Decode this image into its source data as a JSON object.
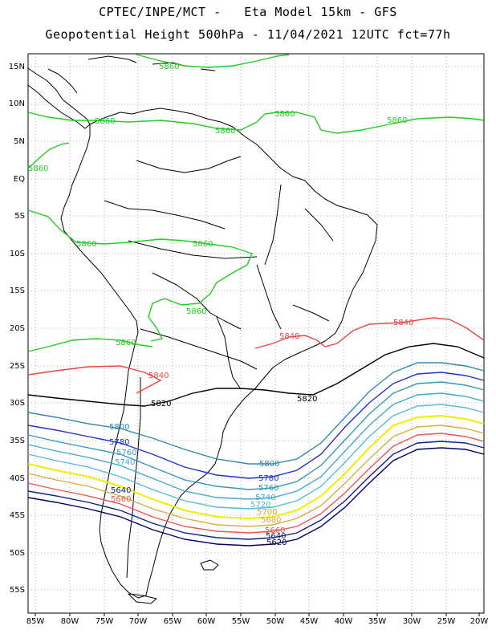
{
  "title_line1": "CPTEC/INPE/MCT -   Eta Model 15km - GFS",
  "title_line2": "Geopotential Height 500hPa - 11/04/2021 12UTC fct=77h",
  "axes": {
    "lat_labels": [
      "15N",
      "10N",
      "5N",
      "EQ",
      "5S",
      "10S",
      "15S",
      "20S",
      "25S",
      "30S",
      "35S",
      "40S",
      "45S",
      "50S",
      "55S"
    ],
    "lon_labels": [
      "85W",
      "80W",
      "75W",
      "70W",
      "65W",
      "60W",
      "55W",
      "50W",
      "45W",
      "40W",
      "35W",
      "30W",
      "25W",
      "20W"
    ],
    "lon_range": [
      -86,
      -20
    ],
    "lat_range": [
      -58,
      17
    ]
  },
  "colors": {
    "c5860": "#22cc22",
    "c5840": "#ee4444",
    "c5820": "#000000",
    "c5800": "#3388aa",
    "c5780": "#2233cc",
    "c5760": "#3399bb",
    "c5740": "#44aacc",
    "c5720": "#55bbdd",
    "c5700": "#eeee00",
    "c5680": "#ddaa44",
    "c5660": "#ee5555",
    "c5640": "#112288",
    "c5620": "#000066"
  },
  "contours": [
    {
      "level": "5860",
      "labels": [
        "5860",
        "5860",
        "5860",
        "5860",
        "5860",
        "5860",
        "5860",
        "5860",
        "5860",
        "5860"
      ]
    },
    {
      "level": "5840",
      "labels": [
        "5840",
        "5840",
        "5840"
      ]
    },
    {
      "level": "5820",
      "labels": [
        "5820",
        "5820"
      ]
    },
    {
      "level": "5800",
      "labels": [
        "5800",
        "5800"
      ]
    },
    {
      "level": "5780",
      "labels": [
        "5780",
        "5780"
      ]
    },
    {
      "level": "5760",
      "labels": [
        "5760",
        "5760"
      ]
    },
    {
      "level": "5740",
      "labels": [
        "5740",
        "5740"
      ]
    },
    {
      "level": "5720",
      "labels": [
        "5720"
      ]
    },
    {
      "level": "5700",
      "labels": [
        "5700"
      ]
    },
    {
      "level": "5680",
      "labels": [
        "5680"
      ]
    },
    {
      "level": "5660",
      "labels": [
        "5660",
        "5660"
      ]
    },
    {
      "level": "5640",
      "labels": [
        "5640",
        "5640"
      ]
    },
    {
      "level": "5620",
      "labels": [
        "5620"
      ]
    }
  ]
}
